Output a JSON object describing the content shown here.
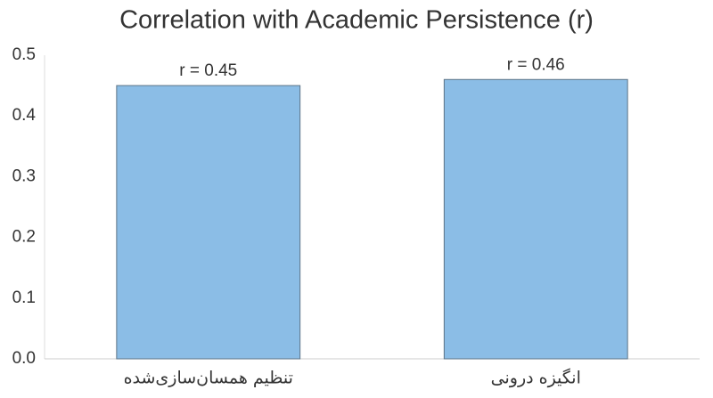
{
  "chart_data": {
    "type": "bar",
    "title": "Correlation with Academic Persistence (r)",
    "categories": [
      "تنظیم همسان‌سازی‌شده",
      "انگیزه درونی"
    ],
    "values": [
      0.45,
      0.46
    ],
    "value_labels": [
      "r = 0.45",
      "r = 0.46"
    ],
    "color": "#8bbde6",
    "ylim": [
      0,
      0.5
    ],
    "yticks": [
      {
        "value": 0,
        "label": "0.0"
      },
      0.1,
      0.2,
      0.3,
      0.4,
      0.5
    ],
    "grid": false
  }
}
